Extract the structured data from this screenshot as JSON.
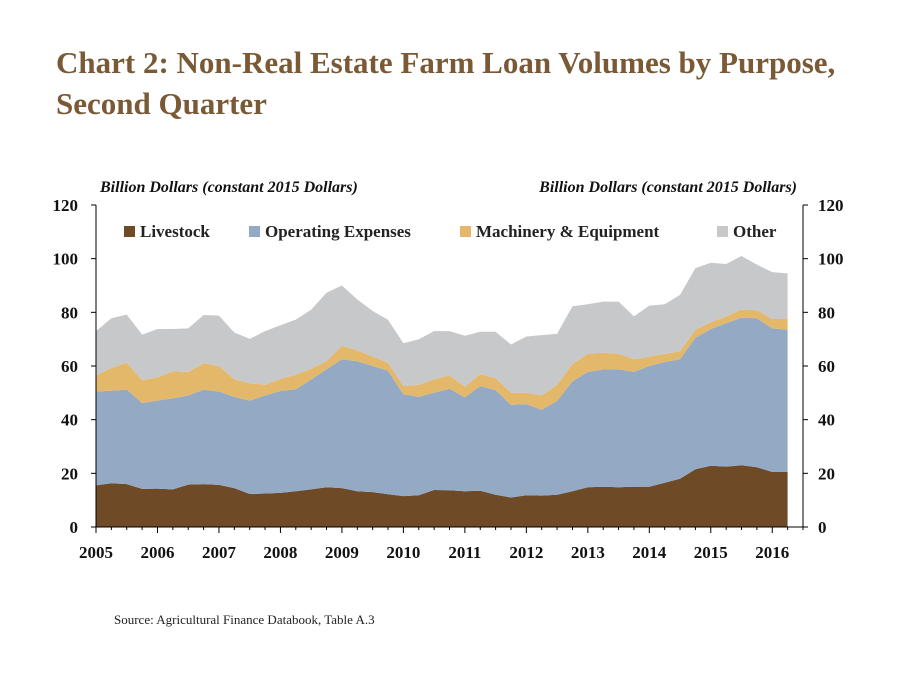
{
  "page": {
    "title": "Chart 2: Non-Real Estate Farm Loan Volumes by Purpose, Second Quarter",
    "source": "Source: Agricultural Finance Databook, Table A.3"
  },
  "chart_data": {
    "type": "area",
    "stacked": true,
    "title": "Chart 2: Non-Real Estate Farm Loan Volumes by Purpose, Second Quarter",
    "ylabel_left": "Billion Dollars  (constant 2015 Dollars)",
    "ylabel_right": "Billion Dollars  (constant 2015 Dollars)",
    "ylim": [
      0,
      120
    ],
    "yticks": [
      0,
      20,
      40,
      60,
      80,
      100,
      120
    ],
    "xlim": [
      2005.0,
      2016.5
    ],
    "xticks": [
      "2005",
      "2006",
      "2007",
      "2008",
      "2009",
      "2010",
      "2011",
      "2012",
      "2013",
      "2014",
      "2015",
      "2016"
    ],
    "legend_position": "top-inside",
    "grid": false,
    "x": [
      2005.0,
      2005.25,
      2005.5,
      2005.75,
      2006.0,
      2006.25,
      2006.5,
      2006.75,
      2007.0,
      2007.25,
      2007.5,
      2007.75,
      2008.0,
      2008.25,
      2008.5,
      2008.75,
      2009.0,
      2009.25,
      2009.5,
      2009.75,
      2010.0,
      2010.25,
      2010.5,
      2010.75,
      2011.0,
      2011.25,
      2011.5,
      2011.75,
      2012.0,
      2012.25,
      2012.5,
      2012.75,
      2013.0,
      2013.25,
      2013.5,
      2013.75,
      2014.0,
      2014.25,
      2014.5,
      2014.75,
      2015.0,
      2015.25,
      2015.5,
      2015.75,
      2016.0,
      2016.25
    ],
    "series": [
      {
        "name": "Livestock",
        "color": "#6e4a26",
        "values": [
          15.5,
          16.3,
          16.0,
          14.2,
          14.3,
          14.0,
          15.8,
          16.0,
          15.7,
          14.5,
          12.3,
          12.5,
          12.7,
          13.3,
          14.0,
          14.8,
          14.5,
          13.3,
          13.0,
          12.2,
          11.5,
          11.8,
          13.8,
          13.7,
          13.3,
          13.5,
          12.0,
          11.0,
          11.8,
          11.7,
          12.0,
          13.3,
          14.8,
          15.0,
          14.8,
          15.0,
          15.0,
          16.5,
          18.0,
          21.5,
          22.8,
          22.5,
          23.0,
          22.3,
          20.5,
          20.5
        ]
      },
      {
        "name": "Operating Expenses",
        "color": "#94a9c3",
        "values": [
          35.0,
          34.5,
          35.2,
          32.0,
          32.8,
          34.0,
          33.2,
          35.2,
          34.8,
          34.0,
          34.8,
          36.5,
          38.0,
          38.0,
          41.0,
          44.0,
          48.0,
          48.5,
          47.0,
          46.0,
          38.0,
          36.7,
          36.2,
          37.8,
          35.0,
          39.0,
          39.0,
          34.5,
          34.0,
          32.0,
          35.0,
          41.0,
          43.0,
          43.7,
          44.0,
          42.8,
          45.0,
          45.0,
          44.5,
          49.0,
          51.0,
          53.5,
          55.0,
          55.5,
          53.5,
          53.0
        ]
      },
      {
        "name": "Machinery & Equipment",
        "color": "#e3b86b",
        "values": [
          6.0,
          8.5,
          10.0,
          8.5,
          8.7,
          10.0,
          8.8,
          9.8,
          9.5,
          6.5,
          6.5,
          4.0,
          4.5,
          5.5,
          4.0,
          3.0,
          5.0,
          4.0,
          3.5,
          3.0,
          3.0,
          4.5,
          5.0,
          5.0,
          4.0,
          4.5,
          4.5,
          4.5,
          4.2,
          5.3,
          6.0,
          6.5,
          6.8,
          6.3,
          5.7,
          4.7,
          3.5,
          3.0,
          3.0,
          3.0,
          2.5,
          2.5,
          3.0,
          3.0,
          3.5,
          4.0
        ]
      },
      {
        "name": "Other",
        "color": "#c7c8ca",
        "values": [
          16.5,
          18.5,
          18.0,
          17.0,
          18.0,
          15.8,
          16.2,
          18.0,
          18.8,
          17.5,
          16.5,
          20.0,
          20.0,
          20.5,
          22.0,
          25.5,
          22.5,
          19.0,
          17.0,
          16.0,
          16.0,
          17.0,
          18.0,
          16.5,
          19.0,
          15.8,
          17.3,
          18.0,
          21.0,
          22.5,
          19.0,
          21.5,
          18.4,
          19.0,
          19.5,
          16.0,
          19.0,
          18.5,
          21.0,
          23.0,
          22.2,
          19.5,
          20.0,
          17.0,
          17.5,
          17.0
        ]
      }
    ]
  }
}
